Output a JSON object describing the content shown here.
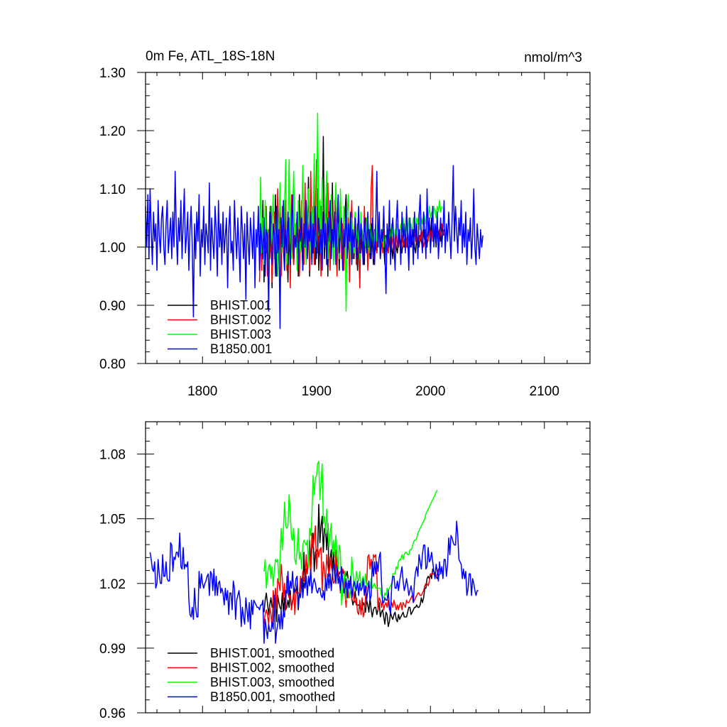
{
  "chart_data": [
    {
      "type": "line",
      "title": "0m Fe, ATL_18S-18N",
      "units": "nmol/m^3",
      "xlim": [
        1750,
        2140
      ],
      "ylim": [
        0.8,
        1.3
      ],
      "x_ticks": [
        1800,
        1900,
        2000,
        2100
      ],
      "x_tick_labels": [
        "1800",
        "1900",
        "2000",
        "2100"
      ],
      "y_ticks": [
        0.8,
        0.9,
        1.0,
        1.1,
        1.2,
        1.3
      ],
      "y_tick_labels": [
        "0.80",
        "0.90",
        "1.00",
        "1.10",
        "1.20",
        "1.30"
      ],
      "legend_position": "bottom-left",
      "series": [
        {
          "name": "BHIST.001",
          "color": "#000000",
          "x_start": 1850,
          "values": [
            1.0,
            1.04,
            0.97,
            1.08,
            0.94,
            1.06,
            0.99,
            1.02,
            0.96,
            1.05,
            1.07,
            0.93,
            1.03,
            0.98,
            1.09,
            0.95,
            1.02,
            0.99,
            1.06,
            0.97,
            1.04,
            1.0,
            0.96,
            1.08,
            1.02,
            0.94,
            1.05,
            1.01,
            0.98,
            1.07,
            0.97,
            1.03,
            1.0,
            1.06,
            0.95,
            1.09,
            0.99,
            1.02,
            0.96,
            1.04,
            1.08,
            0.98,
            1.03,
            1.12,
            0.95,
            1.06,
            1.01,
            0.99,
            1.14,
            0.97,
            1.05,
            1.1,
            0.96,
            1.03,
            1.07,
            1.0,
            1.19,
            0.98,
            1.04,
            1.09,
            0.95,
            1.06,
            1.02,
            0.99,
            1.11,
            0.97,
            1.05,
            1.08,
            1.0,
            1.03,
            0.96,
            1.07,
            1.01,
            1.04,
            0.98,
            1.06,
            1.09,
            0.99,
            1.02,
            0.97,
            1.05,
            1.03,
            1.0,
            0.98,
            1.06,
            1.02,
            0.96,
            1.04,
            1.01,
            0.99,
            1.03,
            1.0,
            0.97,
            1.05,
            1.02,
            0.99,
            1.03,
            0.98,
            1.04,
            1.01,
            0.97,
            1.03,
            1.0,
            0.99,
            1.02,
            1.04,
            0.98,
            1.01,
            1.03,
            1.0,
            0.97,
            1.02,
            1.0,
            0.99,
            1.01,
            1.03,
            1.0,
            0.98,
            1.02,
            1.01,
            1.0,
            0.99,
            1.01,
            1.02,
            1.0,
            0.99,
            1.01,
            1.0,
            1.02,
            1.01,
            1.0,
            0.99,
            1.02,
            1.0,
            1.01,
            1.03,
            1.0,
            0.99,
            1.02,
            1.01,
            1.0,
            1.02,
            1.01,
            1.0,
            1.03,
            1.01,
            1.02,
            1.0,
            1.03,
            1.04,
            1.02,
            1.05,
            1.01,
            1.02,
            1.03,
            1.0,
            1.04,
            1.02,
            1.03,
            1.01,
            1.04,
            1.02,
            1.03
          ]
        },
        {
          "name": "BHIST.002",
          "color": "#ff0000",
          "x_start": 1850,
          "values": [
            0.94,
            1.02,
            0.96,
            1.05,
            0.99,
            1.0,
            1.07,
            0.95,
            1.03,
            0.98,
            1.04,
            0.94,
            1.01,
            1.06,
            0.97,
            1.02,
            1.1,
            0.98,
            1.04,
            0.95,
            1.07,
            0.99,
            1.03,
            1.08,
            0.96,
            1.01,
            1.05,
            0.93,
            1.09,
            1.0,
            0.97,
            1.04,
            1.02,
            0.99,
            1.06,
            0.95,
            1.03,
            1.08,
            1.0,
            0.97,
            1.11,
            0.98,
            1.05,
            1.02,
            0.96,
            1.13,
            1.0,
            1.07,
            0.97,
            1.04,
            1.15,
            0.99,
            1.06,
            1.01,
            0.95,
            1.09,
            1.03,
            1.0,
            1.05,
            0.97,
            1.11,
            1.02,
            0.96,
            1.07,
            1.04,
            0.99,
            1.08,
            1.01,
            0.95,
            1.06,
            1.03,
            1.09,
            0.98,
            1.04,
            0.96,
            1.02,
            1.07,
            0.99,
            1.05,
            0.94,
            1.03,
            1.08,
            0.98,
            1.01,
            1.06,
            0.97,
            1.04,
            1.0,
            0.93,
            1.05,
            1.02,
            0.97,
            1.07,
            1.0,
            1.04,
            0.96,
            1.02,
            0.99,
            1.1,
            1.14,
            0.98,
            1.01,
            1.04,
            0.99,
            1.03,
            1.01,
            1.0,
            1.02,
            0.99,
            1.03,
            1.0,
            1.01,
            1.02,
            0.99,
            1.03,
            1.01,
            1.0,
            1.02,
            0.99,
            1.01,
            1.03,
            1.0,
            1.02,
            1.01,
            0.99,
            1.02,
            1.0,
            1.01,
            1.02,
            1.0,
            1.03,
            1.01,
            1.0,
            1.02,
            1.01,
            1.0,
            1.02,
            1.03,
            1.01,
            1.0,
            1.02,
            1.01,
            1.03,
            1.02,
            1.0,
            1.01,
            1.03,
            1.02,
            1.01,
            1.04,
            1.02,
            1.03,
            1.01,
            1.02,
            1.04,
            1.03,
            1.02,
            1.01,
            1.03,
            1.02,
            1.04,
            1.03,
            1.02
          ]
        },
        {
          "name": "BHIST.003",
          "color": "#00ff00",
          "x_start": 1850,
          "values": [
            1.02,
            1.12,
            0.99,
            1.05,
            0.97,
            1.08,
            1.01,
            1.03,
            0.96,
            1.07,
            1.0,
            1.04,
            1.09,
            0.98,
            1.02,
            1.06,
            0.95,
            1.03,
            1.11,
            0.99,
            1.05,
            1.0,
            1.07,
            1.15,
            0.97,
            1.03,
            1.15,
            1.01,
            0.98,
            1.06,
            1.13,
            1.0,
            1.04,
            0.96,
            1.08,
            1.02,
            0.99,
            1.05,
            1.14,
            1.0,
            1.03,
            0.97,
            1.06,
            1.1,
            1.01,
            0.98,
            1.07,
            1.03,
            1.16,
            1.0,
            1.05,
            1.23,
            1.02,
            1.08,
            0.99,
            1.12,
            1.04,
            1.0,
            1.07,
            1.13,
            0.98,
            1.05,
            1.01,
            1.09,
            1.03,
            0.97,
            1.06,
            1.11,
            1.0,
            1.04,
            0.98,
            1.1,
            1.02,
            0.96,
            1.07,
            1.03,
            0.89,
            1.06,
            1.09,
            1.01,
            0.98,
            1.05,
            1.02,
            0.99,
            1.06,
            1.03,
            1.0,
            1.04,
            0.98,
            1.06,
            1.02,
            1.01,
            1.03,
            1.0,
            1.05,
            1.02,
            0.99,
            1.04,
            1.01,
            1.03,
            1.0,
            1.02,
            1.04,
            1.01,
            1.03,
            1.0,
            1.02,
            1.01,
            1.03,
            1.0,
            1.02,
            1.01,
            1.0,
            1.03,
            1.02,
            1.01,
            1.04,
            1.02,
            1.01,
            1.03,
            1.02,
            1.04,
            1.03,
            1.02,
            1.04,
            1.03,
            1.05,
            1.02,
            1.03,
            1.04,
            1.02,
            1.05,
            1.03,
            1.04,
            1.02,
            1.05,
            1.04,
            1.03,
            1.05,
            1.04,
            1.06,
            1.03,
            1.05,
            1.04,
            1.06,
            1.05,
            1.04,
            1.06,
            1.05,
            1.07,
            1.05,
            1.06,
            1.05,
            1.07,
            1.06,
            1.05,
            1.07,
            1.06,
            1.08,
            1.06,
            1.07
          ]
        },
        {
          "name": "B1850.001",
          "color": "#0000ff",
          "x_start": 1750,
          "values": [
            1.07,
            1.0,
            1.09,
            0.98,
            1.1,
            1.03,
            0.97,
            1.06,
            1.01,
            1.04,
            0.96,
            1.08,
            1.02,
            0.99,
            1.05,
            1.07,
            1.0,
            0.97,
            1.04,
            1.08,
            0.99,
            1.02,
            1.05,
            0.98,
            1.06,
            1.0,
            1.13,
            1.03,
            0.97,
            1.05,
            1.01,
            1.08,
            0.98,
            1.04,
            1.1,
            0.99,
            1.02,
            1.06,
            0.96,
            1.03,
            1.07,
            1.0,
            0.88,
            1.04,
            0.98,
            1.06,
            1.01,
            1.09,
            0.95,
            1.03,
            1.0,
            1.07,
            0.97,
            1.04,
            1.02,
            0.99,
            1.11,
            0.96,
            1.05,
            1.01,
            0.98,
            1.07,
            1.03,
            0.95,
            1.08,
            1.0,
            1.04,
            0.97,
            1.06,
            0.99,
            1.02,
            1.05,
            0.93,
            1.03,
            1.07,
            0.99,
            1.01,
            0.96,
            1.08,
            1.02,
            0.98,
            1.05,
            1.0,
            0.94,
            1.07,
            1.03,
            0.98,
            1.04,
            0.91,
            1.06,
            1.01,
            0.97,
            1.05,
            1.02,
            0.98,
            1.06,
            0.93,
            1.03,
            1.0,
            1.07,
            0.96,
            1.04,
            1.01,
            0.98,
            1.05,
            0.95,
            1.03,
            1.02,
            0.89,
            1.06,
            1.0,
            0.97,
            1.04,
            1.02,
            0.95,
            1.07,
            0.99,
            1.03,
            0.86,
            1.05,
            1.0,
            1.08,
            0.96,
            1.03,
            0.99,
            1.06,
            1.01,
            0.97,
            1.04,
            1.09,
            0.98,
            1.02,
            1.0,
            1.06,
            0.97,
            1.03,
            1.01,
            1.05,
            0.96,
            1.04,
            1.0,
            1.08,
            0.98,
            1.03,
            1.01,
            1.06,
            0.97,
            1.04,
            1.0,
            1.07,
            0.98,
            1.02,
            1.05,
            0.99,
            1.03,
            0.96,
            1.06,
            1.0,
            1.04,
            0.97,
            1.05,
            1.01,
            1.08,
            0.98,
            1.03,
            1.0,
            1.06,
            0.97,
            1.04,
            1.09,
            0.99,
            1.02,
            1.05,
            0.96,
            1.03,
            1.0,
            1.07,
            0.98,
            1.04,
            1.01,
            1.06,
            0.97,
            1.03,
            1.0,
            1.05,
            0.98,
            1.02,
            1.07,
            0.99,
            1.04,
            1.01,
            0.97,
            1.05,
            1.02,
            0.99,
            1.06,
            1.0,
            1.03,
            0.98,
            1.05,
            1.01,
            0.97,
            1.04,
            1.13,
            1.0,
            1.06,
            0.98,
            1.03,
            1.01,
            1.07,
            0.99,
            0.92,
            1.04,
            1.0,
            1.08,
            0.97,
            1.03,
            1.05,
            1.0,
            0.96,
            1.04,
            1.08,
            1.0,
            1.03,
            0.97,
            1.06,
            1.01,
            1.04,
            0.99,
            1.07,
            1.02,
            0.96,
            1.05,
            1.0,
            1.03,
            0.97,
            1.06,
            1.01,
            1.04,
            0.98,
            1.05,
            1.09,
            1.02,
            0.99,
            1.06,
            1.03,
            0.98,
            1.1,
            1.02,
            1.05,
            0.99,
            1.03,
            1.07,
            1.0,
            1.04,
            1.01,
            1.06,
            0.98,
            1.02,
            1.05,
            1.0,
            1.03,
            1.08,
            0.99,
            1.04,
            1.01,
            1.06,
            1.02,
            0.98,
            1.05,
            1.14,
            1.01,
            1.07,
            1.03,
            0.99,
            1.05,
            1.02,
            1.08,
            0.99,
            1.04,
            1.0,
            1.06,
            0.97,
            1.03,
            1.01,
            1.05,
            0.98,
            1.02,
            1.1,
            1.0,
            0.97,
            1.04,
            1.01,
            0.98,
            1.03,
            1.0,
            1.02
          ]
        }
      ]
    },
    {
      "type": "line",
      "xlim": [
        1750,
        2140
      ],
      "ylim": [
        0.96,
        1.095
      ],
      "x_ticks": [
        1800,
        1900,
        2000,
        2100
      ],
      "y_ticks": [
        0.96,
        0.99,
        1.02,
        1.05,
        1.08
      ],
      "y_tick_labels": [
        "0.96",
        "0.99",
        "1.02",
        "1.05",
        "1.08"
      ],
      "legend_position": "bottom-left",
      "series": [
        {
          "name": "BHIST.001, smoothed",
          "color": "#000000",
          "x_start": 1853,
          "window": 9,
          "source": "BHIST.001"
        },
        {
          "name": "BHIST.002, smoothed",
          "color": "#ff0000",
          "x_start": 1853,
          "window": 9,
          "source": "BHIST.002"
        },
        {
          "name": "BHIST.003, smoothed",
          "color": "#00ff00",
          "x_start": 1853,
          "window": 9,
          "source": "BHIST.003"
        },
        {
          "name": "B1850.001, smoothed",
          "color": "#0000ff",
          "x_start": 1750,
          "window": 9,
          "source": "B1850.001"
        }
      ]
    }
  ]
}
